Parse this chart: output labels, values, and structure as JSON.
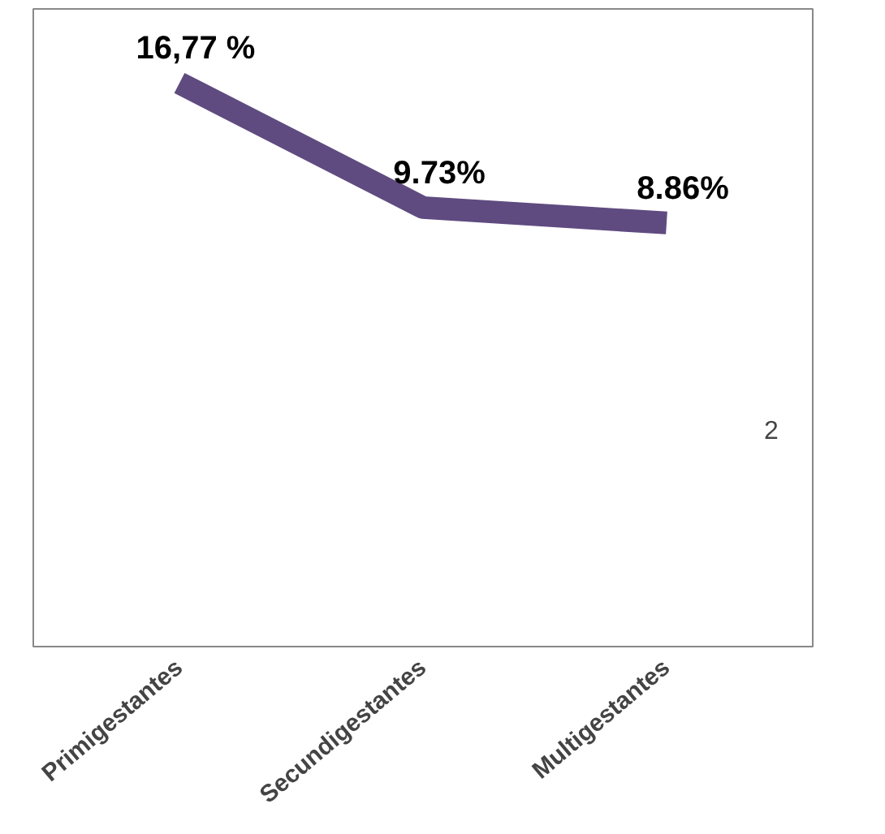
{
  "chart_data": {
    "type": "line",
    "categories": [
      "Primigestantes",
      "Secundigestantes",
      "Multigestantes"
    ],
    "series": [
      {
        "color": "#5f4b80",
        "values": [
          16.77,
          9.73,
          8.86
        ],
        "value_labels": [
          "16,77 %",
          "9.73%",
          "8.86%"
        ]
      }
    ],
    "annotations": [
      "2"
    ],
    "grid": false
  }
}
